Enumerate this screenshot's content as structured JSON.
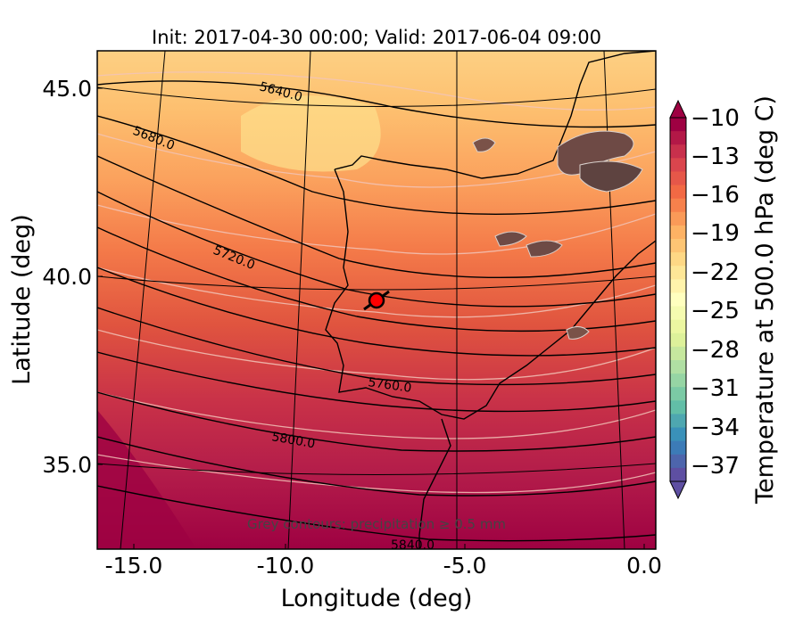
{
  "title": "Init: 2017-04-30 00:00; Valid: 2017-06-04 09:00",
  "xlabel": "Longitude (deg)",
  "ylabel": "Latitude (deg)",
  "x_ticks": [
    "-15.0",
    "-10.0",
    "-5.0",
    "0.0"
  ],
  "y_ticks": [
    "45.0",
    "40.0",
    "35.0"
  ],
  "colorbar": {
    "label": "Temperature at 500.0 hPa (deg C)",
    "ticks": [
      "−10",
      "−13",
      "−16",
      "−19",
      "−22",
      "−25",
      "−28",
      "−31",
      "−34",
      "−37"
    ],
    "colormap": "Spectral",
    "extend": "both"
  },
  "contour_labels": [
    "5640.0",
    "5680.0",
    "5720.0",
    "5760.0",
    "5800.0",
    "5840.0"
  ],
  "note": "Grey contours: precipitation ≥ 0.5 mm",
  "marker": {
    "lon": -7.6,
    "lat": 39.3,
    "color": "#ff0000"
  },
  "chart_data": {
    "type": "heatmap",
    "title": "Init: 2017-04-30 00:00; Valid: 2017-06-04 09:00",
    "xlabel": "Longitude (deg)",
    "ylabel": "Latitude (deg)",
    "xlim": [
      -16,
      0.2
    ],
    "ylim": [
      32.8,
      46
    ],
    "colorbar_label": "Temperature at 500.0 hPa (deg C)",
    "colorbar_range": [
      -37,
      -10
    ],
    "geopotential_contours": [
      5640.0,
      5680.0,
      5720.0,
      5760.0,
      5800.0,
      5840.0
    ]
  }
}
